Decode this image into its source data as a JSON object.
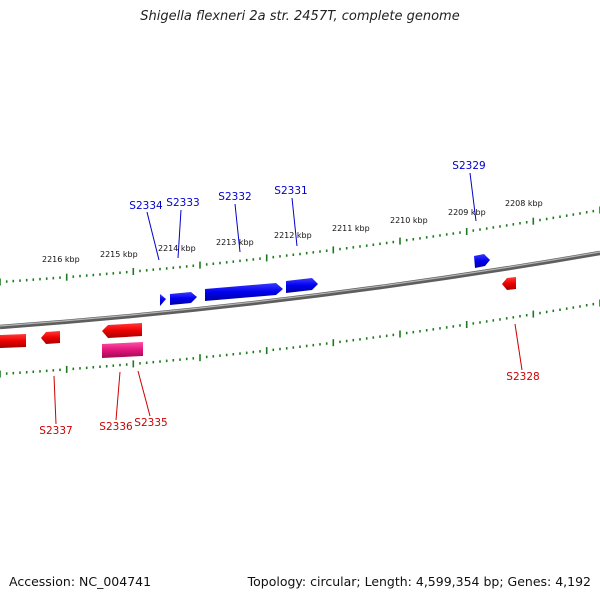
{
  "title": "Shigella flexneri 2a str. 2457T, complete genome",
  "footer": {
    "accession": "Accession: NC_004741",
    "summary": "Topology: circular; Length: 4,599,354 bp; Genes: 4,192"
  },
  "colors": {
    "backbone": "#808080",
    "ticks": "#1e7a1e",
    "forward_gene": "#0000ee",
    "reverse_gene": "#ee0000",
    "reverse_gene_alt": "#e0157a",
    "forward_label": "#0000cc",
    "reverse_label": "#cc0000"
  },
  "scale": {
    "unit": "kbp",
    "labels": [
      "2216 kbp",
      "2215 kbp",
      "2214 kbp",
      "2213 kbp",
      "2212 kbp",
      "2211 kbp",
      "2210 kbp",
      "2209 kbp",
      "2208 kbp"
    ]
  },
  "genes": {
    "forward": [
      "S2334",
      "S2333",
      "S2332",
      "S2331",
      "S2329"
    ],
    "reverse": [
      "S2337",
      "S2336",
      "S2335",
      "S2328"
    ]
  }
}
